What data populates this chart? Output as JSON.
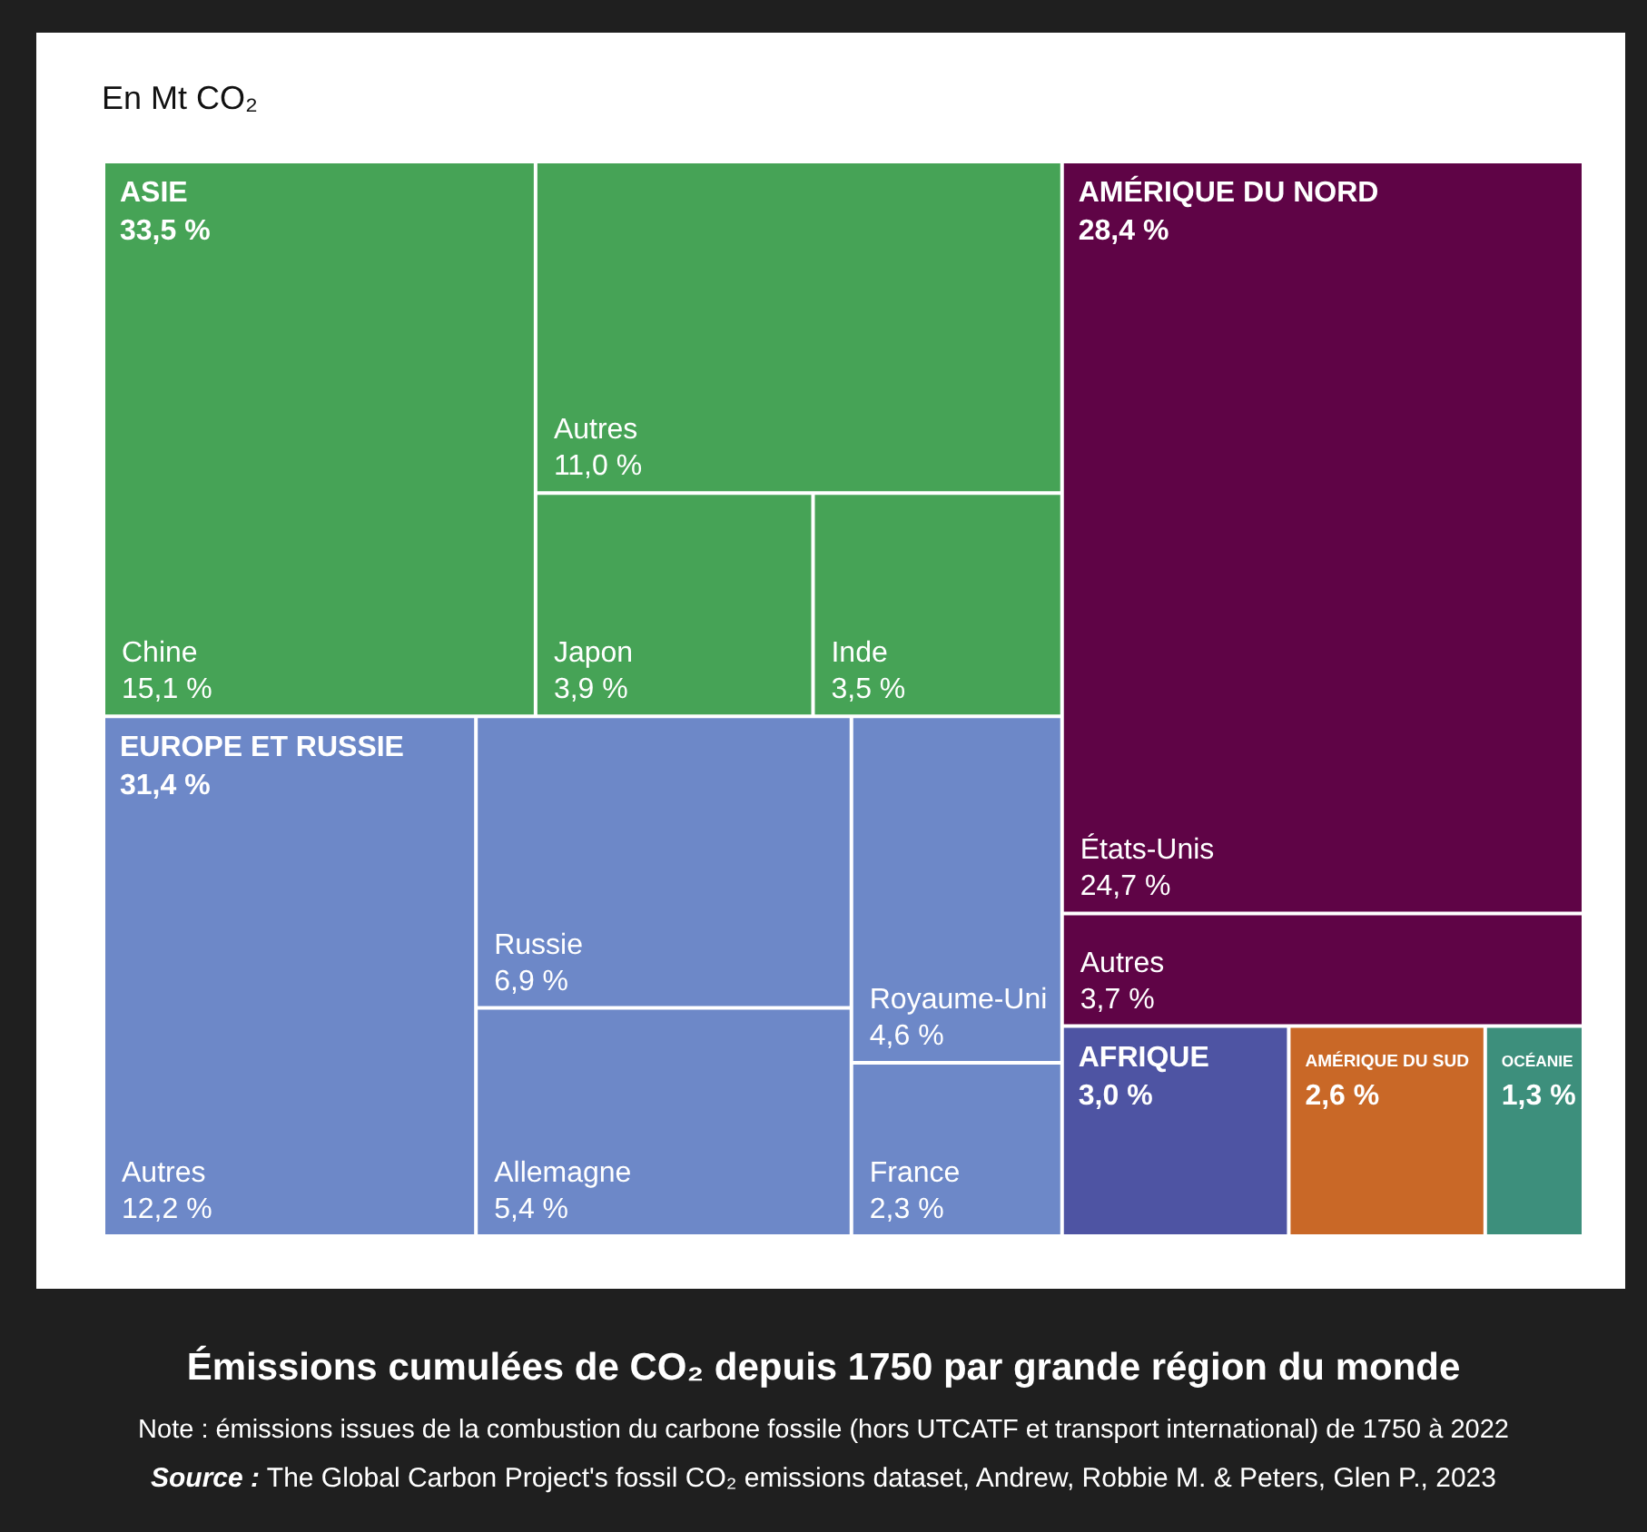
{
  "chart_data": {
    "type": "other",
    "title": "Émissions cumulées de CO₂ depuis 1750 par grande région du monde",
    "annotations": [
      "En Mt CO₂",
      "Note : émissions issues de la combustion du carbone fossile (hors UTCATF et transport international) de 1750 à 2022",
      "Source : The Global Carbon Project's fossil CO₂ emissions dataset, Andrew, Robbie M. & Peters, Glen P., 2023"
    ],
    "categories": [
      "Chine",
      "Autres",
      "Japon",
      "Inde",
      "Autres",
      "Russie",
      "Allemagne",
      "Royaume-Uni",
      "France",
      "États-Unis",
      "Autres",
      "AFRIQUE",
      "AMÉRIQUE DU SUD",
      "OCÉANIE"
    ],
    "totals": [
      "33,5 %",
      "31,4 %",
      "28,4 %",
      null,
      null,
      null
    ],
    "series": [
      {
        "name": "ASIE",
        "color": "#46a356",
        "values": [
          15.1,
          11.0,
          3.9,
          3.5,
          null,
          null,
          null,
          null,
          null,
          null,
          null,
          null,
          null,
          null
        ],
        "value_labels": [
          "15,1 %",
          "11,0 %",
          "3,9 %",
          "3,5 %",
          null,
          null,
          null,
          null,
          null,
          null,
          null,
          null,
          null,
          null
        ]
      },
      {
        "name": "EUROPE ET RUSSIE",
        "color": "#6d88c8",
        "values": [
          null,
          null,
          null,
          null,
          12.2,
          6.9,
          5.4,
          4.6,
          2.3,
          null,
          null,
          null,
          null,
          null
        ],
        "value_labels": [
          null,
          null,
          null,
          null,
          "12,2 %",
          "6,9 %",
          "5,4 %",
          "4,6 %",
          "2,3 %",
          null,
          null,
          null,
          null,
          null
        ]
      },
      {
        "name": "AMÉRIQUE DU NORD",
        "color": "#5f0446",
        "values": [
          null,
          null,
          null,
          null,
          null,
          null,
          null,
          null,
          null,
          24.7,
          3.7,
          null,
          null,
          null
        ],
        "value_labels": [
          null,
          null,
          null,
          null,
          null,
          null,
          null,
          null,
          null,
          "24,7 %",
          "3,7 %",
          null,
          null,
          null
        ]
      },
      {
        "color": "#4e54a3",
        "values": [
          null,
          null,
          null,
          null,
          null,
          null,
          null,
          null,
          null,
          null,
          null,
          3.0,
          null,
          null
        ],
        "value_labels": [
          null,
          null,
          null,
          null,
          null,
          null,
          null,
          null,
          null,
          null,
          null,
          "3,0 %",
          null,
          null
        ]
      },
      {
        "color": "#c96827",
        "values": [
          null,
          null,
          null,
          null,
          null,
          null,
          null,
          null,
          null,
          null,
          null,
          null,
          2.6,
          null
        ],
        "value_labels": [
          null,
          null,
          null,
          null,
          null,
          null,
          null,
          null,
          null,
          null,
          null,
          null,
          "2,6 %",
          null
        ]
      },
      {
        "color": "#3d8f7c",
        "values": [
          null,
          null,
          null,
          null,
          null,
          null,
          null,
          null,
          null,
          null,
          null,
          null,
          null,
          1.3
        ],
        "value_labels": [
          null,
          null,
          null,
          null,
          null,
          null,
          null,
          null,
          null,
          null,
          null,
          null,
          null,
          "1,3 %"
        ]
      }
    ]
  }
}
